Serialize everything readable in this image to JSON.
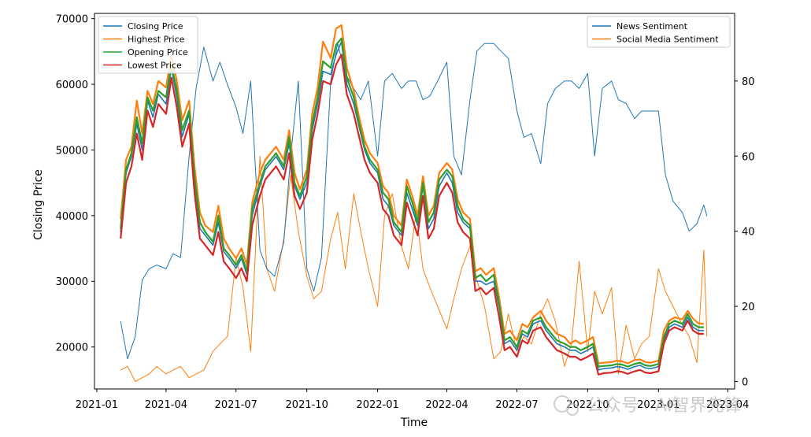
{
  "chart_data": {
    "type": "line",
    "xlabel": "Time",
    "ylabel": "Closing Price",
    "y2label": "",
    "x_range": [
      "2020-12-29",
      "2023-04-10"
    ],
    "ylim": [
      13600,
      70800
    ],
    "y2lim": [
      -2,
      98
    ],
    "x_ticks": [
      "2021-01",
      "2021-04",
      "2021-07",
      "2021-10",
      "2022-01",
      "2022-04",
      "2022-07",
      "2022-10",
      "2023-01",
      "2023-04"
    ],
    "y_ticks": [
      20000,
      30000,
      40000,
      50000,
      60000,
      70000
    ],
    "y2_ticks": [
      0,
      20,
      40,
      60,
      80
    ],
    "grid": false,
    "legend_left": {
      "placement": "top-left",
      "entries": [
        {
          "label": "Closing Price",
          "color": "#1f77b4"
        },
        {
          "label": "Highest Price",
          "color": "#ff7f0e"
        },
        {
          "label": "Opening Price",
          "color": "#2ca02c"
        },
        {
          "label": "Lowest Price",
          "color": "#d62728"
        }
      ]
    },
    "legend_right": {
      "placement": "top-right",
      "entries": [
        {
          "label": "News Sentiment",
          "color": "#1f77b4"
        },
        {
          "label": "Social Media Sentiment",
          "color": "#ff7f0e"
        }
      ]
    },
    "price_series": {
      "x": [
        "2021-02-01",
        "2021-02-08",
        "2021-02-15",
        "2021-02-22",
        "2021-03-01",
        "2021-03-08",
        "2021-03-15",
        "2021-03-22",
        "2021-04-01",
        "2021-04-08",
        "2021-04-15",
        "2021-04-22",
        "2021-05-01",
        "2021-05-08",
        "2021-05-15",
        "2021-05-22",
        "2021-06-01",
        "2021-06-08",
        "2021-06-15",
        "2021-06-22",
        "2021-07-01",
        "2021-07-08",
        "2021-07-15",
        "2021-07-22",
        "2021-08-01",
        "2021-08-08",
        "2021-08-15",
        "2021-08-22",
        "2021-09-01",
        "2021-09-08",
        "2021-09-15",
        "2021-09-22",
        "2021-10-01",
        "2021-10-08",
        "2021-10-15",
        "2021-10-22",
        "2021-11-01",
        "2021-11-08",
        "2021-11-15",
        "2021-11-22",
        "2021-12-01",
        "2021-12-08",
        "2021-12-15",
        "2021-12-22",
        "2022-01-01",
        "2022-01-08",
        "2022-01-15",
        "2022-01-22",
        "2022-02-01",
        "2022-02-08",
        "2022-02-15",
        "2022-02-22",
        "2022-03-01",
        "2022-03-08",
        "2022-03-15",
        "2022-03-22",
        "2022-04-01",
        "2022-04-08",
        "2022-04-15",
        "2022-04-22",
        "2022-05-01",
        "2022-05-08",
        "2022-05-15",
        "2022-05-22",
        "2022-06-01",
        "2022-06-08",
        "2022-06-15",
        "2022-06-22",
        "2022-07-01",
        "2022-07-08",
        "2022-07-15",
        "2022-07-22",
        "2022-08-01",
        "2022-08-08",
        "2022-08-15",
        "2022-08-22",
        "2022-09-01",
        "2022-09-08",
        "2022-09-15",
        "2022-09-22",
        "2022-10-01",
        "2022-10-08",
        "2022-10-15",
        "2022-10-22",
        "2022-11-01",
        "2022-11-08",
        "2022-11-15",
        "2022-11-22",
        "2022-12-01",
        "2022-12-08",
        "2022-12-15",
        "2022-12-22",
        "2023-01-01",
        "2023-01-08",
        "2023-01-15",
        "2023-01-22",
        "2023-02-01",
        "2023-02-08",
        "2023-02-15",
        "2023-02-22",
        "2023-03-01"
      ],
      "close": [
        37500,
        46500,
        49000,
        54000,
        50000,
        57500,
        55000,
        58500,
        57000,
        62500,
        58000,
        52000,
        55500,
        45000,
        38000,
        37000,
        35500,
        39000,
        34500,
        33500,
        32000,
        33500,
        31000,
        40000,
        44500,
        47000,
        48000,
        49000,
        47000,
        51000,
        44500,
        42500,
        45000,
        53000,
        57000,
        62000,
        61500,
        64500,
        66500,
        60000,
        57000,
        53500,
        50000,
        48000,
        46500,
        42500,
        41500,
        38500,
        37000,
        43500,
        41000,
        38500,
        44500,
        38000,
        39500,
        44500,
        46500,
        45000,
        40500,
        39000,
        38000,
        30000,
        30000,
        29500,
        30000,
        26000,
        20500,
        21000,
        19500,
        22000,
        21500,
        23500,
        24000,
        22500,
        21500,
        20500,
        20000,
        19500,
        19500,
        19000,
        19500,
        20000,
        16500,
        16700,
        16800,
        17000,
        16900,
        16600,
        17000,
        17200,
        16800,
        16700,
        17000,
        21000,
        23000,
        23500,
        23000,
        24500,
        23000,
        22500,
        22500
      ],
      "high": [
        39500,
        48500,
        50500,
        57500,
        52500,
        59000,
        57000,
        60500,
        59500,
        64500,
        60500,
        54500,
        57500,
        47500,
        40500,
        38500,
        37500,
        41500,
        36500,
        35000,
        33500,
        35000,
        32500,
        42000,
        46500,
        48500,
        49500,
        50500,
        48500,
        53000,
        46500,
        44000,
        47000,
        55500,
        59500,
        66500,
        64000,
        68500,
        69000,
        62500,
        59000,
        55000,
        51500,
        49500,
        48000,
        44500,
        43500,
        40000,
        38500,
        45500,
        43000,
        40000,
        46000,
        40000,
        41500,
        46500,
        48000,
        47000,
        42500,
        40500,
        39500,
        31500,
        32000,
        31000,
        32000,
        27500,
        22000,
        22500,
        21000,
        23500,
        23000,
        24500,
        25500,
        24000,
        23000,
        22000,
        21500,
        20500,
        21000,
        20500,
        21000,
        21500,
        17500,
        17600,
        17700,
        17900,
        17800,
        17500,
        18000,
        18100,
        17700,
        17600,
        17900,
        22500,
        24000,
        24500,
        24200,
        25500,
        24300,
        23600,
        23500
      ],
      "open": [
        38000,
        47000,
        49500,
        55000,
        51000,
        58000,
        56000,
        59000,
        58000,
        63000,
        59000,
        53000,
        56000,
        46000,
        39000,
        37500,
        36000,
        40000,
        35000,
        34000,
        32500,
        34000,
        31500,
        41000,
        45000,
        47500,
        48500,
        49500,
        47500,
        52000,
        45000,
        43000,
        46000,
        54000,
        58000,
        63500,
        62500,
        66000,
        67000,
        61000,
        58000,
        54000,
        50500,
        48500,
        47000,
        43500,
        42500,
        39000,
        37500,
        44500,
        42000,
        39000,
        45000,
        39000,
        40500,
        45500,
        47000,
        46000,
        41500,
        39500,
        38500,
        30500,
        31000,
        30000,
        31000,
        26500,
        21000,
        21500,
        20000,
        22500,
        22000,
        24000,
        24500,
        23000,
        22000,
        21000,
        20500,
        20000,
        20000,
        19500,
        20000,
        20500,
        17000,
        17100,
        17200,
        17400,
        17300,
        17000,
        17400,
        17600,
        17200,
        17100,
        17400,
        21500,
        23500,
        24000,
        23500,
        25000,
        23500,
        23000,
        23000
      ],
      "low": [
        36500,
        45000,
        47500,
        52500,
        48500,
        56000,
        53500,
        57000,
        55500,
        61000,
        56500,
        50500,
        54000,
        43500,
        36500,
        35500,
        34000,
        37500,
        33000,
        32000,
        30500,
        32000,
        30000,
        38500,
        43000,
        45500,
        46500,
        47500,
        45500,
        49500,
        43000,
        41000,
        43500,
        51500,
        55500,
        60500,
        60000,
        63000,
        64500,
        58500,
        55500,
        52000,
        48500,
        46500,
        45000,
        41000,
        40000,
        37000,
        35500,
        42000,
        39500,
        37000,
        43000,
        36500,
        38000,
        43000,
        45000,
        43500,
        39000,
        37500,
        36500,
        28500,
        29000,
        28000,
        29000,
        24500,
        19500,
        20000,
        18500,
        21000,
        20500,
        22500,
        23000,
        21500,
        20500,
        19500,
        19000,
        18500,
        18500,
        18000,
        18500,
        19000,
        15800,
        16000,
        16100,
        16300,
        16200,
        15900,
        16300,
        16500,
        16100,
        16000,
        16300,
        20500,
        22500,
        23000,
        22500,
        24000,
        22500,
        22000,
        22000
      ]
    },
    "news_sentiment": {
      "x": [
        "2021-02-01",
        "2021-02-10",
        "2021-02-20",
        "2021-03-01",
        "2021-03-10",
        "2021-03-20",
        "2021-04-01",
        "2021-04-10",
        "2021-04-20",
        "2021-05-01",
        "2021-05-10",
        "2021-05-20",
        "2021-06-01",
        "2021-06-10",
        "2021-06-20",
        "2021-07-01",
        "2021-07-10",
        "2021-07-20",
        "2021-08-01",
        "2021-08-10",
        "2021-08-20",
        "2021-09-01",
        "2021-09-10",
        "2021-09-20",
        "2021-10-01",
        "2021-10-10",
        "2021-10-20",
        "2021-11-01",
        "2021-11-10",
        "2021-11-20",
        "2021-12-01",
        "2021-12-10",
        "2021-12-20",
        "2022-01-01",
        "2022-01-10",
        "2022-01-20",
        "2022-02-01",
        "2022-02-10",
        "2022-02-20",
        "2022-03-01",
        "2022-03-10",
        "2022-03-20",
        "2022-04-01",
        "2022-04-10",
        "2022-04-20",
        "2022-05-01",
        "2022-05-10",
        "2022-05-20",
        "2022-06-01",
        "2022-06-10",
        "2022-06-20",
        "2022-07-01",
        "2022-07-10",
        "2022-07-20",
        "2022-08-01",
        "2022-08-10",
        "2022-08-20",
        "2022-09-01",
        "2022-09-10",
        "2022-09-20",
        "2022-10-01",
        "2022-10-10",
        "2022-10-20",
        "2022-11-01",
        "2022-11-10",
        "2022-11-20",
        "2022-12-01",
        "2022-12-10",
        "2022-12-20",
        "2023-01-01",
        "2023-01-10",
        "2023-01-20",
        "2023-02-01",
        "2023-02-10",
        "2023-02-20",
        "2023-03-01",
        "2023-03-05"
      ],
      "values": [
        16,
        6,
        12,
        27,
        30,
        31,
        30,
        34,
        33,
        60,
        78,
        89,
        80,
        85,
        79,
        73,
        66,
        80,
        35,
        30,
        28,
        37,
        60,
        80,
        30,
        24,
        33,
        80,
        90,
        82,
        78,
        75,
        80,
        60,
        80,
        82,
        78,
        80,
        80,
        75,
        76,
        80,
        85,
        60,
        55,
        75,
        88,
        90,
        90,
        88,
        86,
        72,
        65,
        66,
        58,
        74,
        78,
        80,
        80,
        78,
        82,
        60,
        78,
        80,
        75,
        74,
        70,
        72,
        72,
        72,
        55,
        48,
        45,
        40,
        42,
        47,
        44
      ]
    },
    "social_sentiment": {
      "x": [
        "2021-02-01",
        "2021-02-10",
        "2021-02-20",
        "2021-03-01",
        "2021-03-10",
        "2021-03-20",
        "2021-04-01",
        "2021-04-10",
        "2021-04-20",
        "2021-05-01",
        "2021-05-10",
        "2021-05-20",
        "2021-06-01",
        "2021-06-10",
        "2021-06-20",
        "2021-07-01",
        "2021-07-10",
        "2021-07-20",
        "2021-08-01",
        "2021-08-10",
        "2021-08-20",
        "2021-09-01",
        "2021-09-10",
        "2021-09-20",
        "2021-10-01",
        "2021-10-10",
        "2021-10-20",
        "2021-11-01",
        "2021-11-10",
        "2021-11-20",
        "2021-12-01",
        "2021-12-10",
        "2021-12-20",
        "2022-01-01",
        "2022-01-10",
        "2022-01-20",
        "2022-02-01",
        "2022-02-10",
        "2022-02-20",
        "2022-03-01",
        "2022-03-10",
        "2022-03-20",
        "2022-04-01",
        "2022-04-10",
        "2022-04-20",
        "2022-05-01",
        "2022-05-10",
        "2022-05-20",
        "2022-06-01",
        "2022-06-10",
        "2022-06-20",
        "2022-07-01",
        "2022-07-10",
        "2022-07-20",
        "2022-08-01",
        "2022-08-10",
        "2022-08-20",
        "2022-09-01",
        "2022-09-10",
        "2022-09-20",
        "2022-10-01",
        "2022-10-10",
        "2022-10-20",
        "2022-11-01",
        "2022-11-10",
        "2022-11-20",
        "2022-12-01",
        "2022-12-10",
        "2022-12-20",
        "2023-01-01",
        "2023-01-10",
        "2023-01-20",
        "2023-02-01",
        "2023-02-10",
        "2023-02-20",
        "2023-03-01",
        "2023-03-05"
      ],
      "values": [
        3,
        4,
        0,
        1,
        2,
        4,
        2,
        3,
        4,
        1,
        2,
        3,
        8,
        10,
        12,
        33,
        25,
        8,
        60,
        30,
        24,
        38,
        55,
        40,
        28,
        22,
        24,
        38,
        45,
        30,
        50,
        40,
        30,
        20,
        44,
        50,
        36,
        30,
        45,
        30,
        25,
        20,
        14,
        22,
        30,
        36,
        27,
        20,
        6,
        8,
        18,
        8,
        12,
        10,
        18,
        22,
        16,
        4,
        10,
        32,
        8,
        24,
        18,
        25,
        2,
        15,
        6,
        10,
        12,
        30,
        24,
        20,
        15,
        12,
        5,
        35,
        12
      ]
    }
  }
}
